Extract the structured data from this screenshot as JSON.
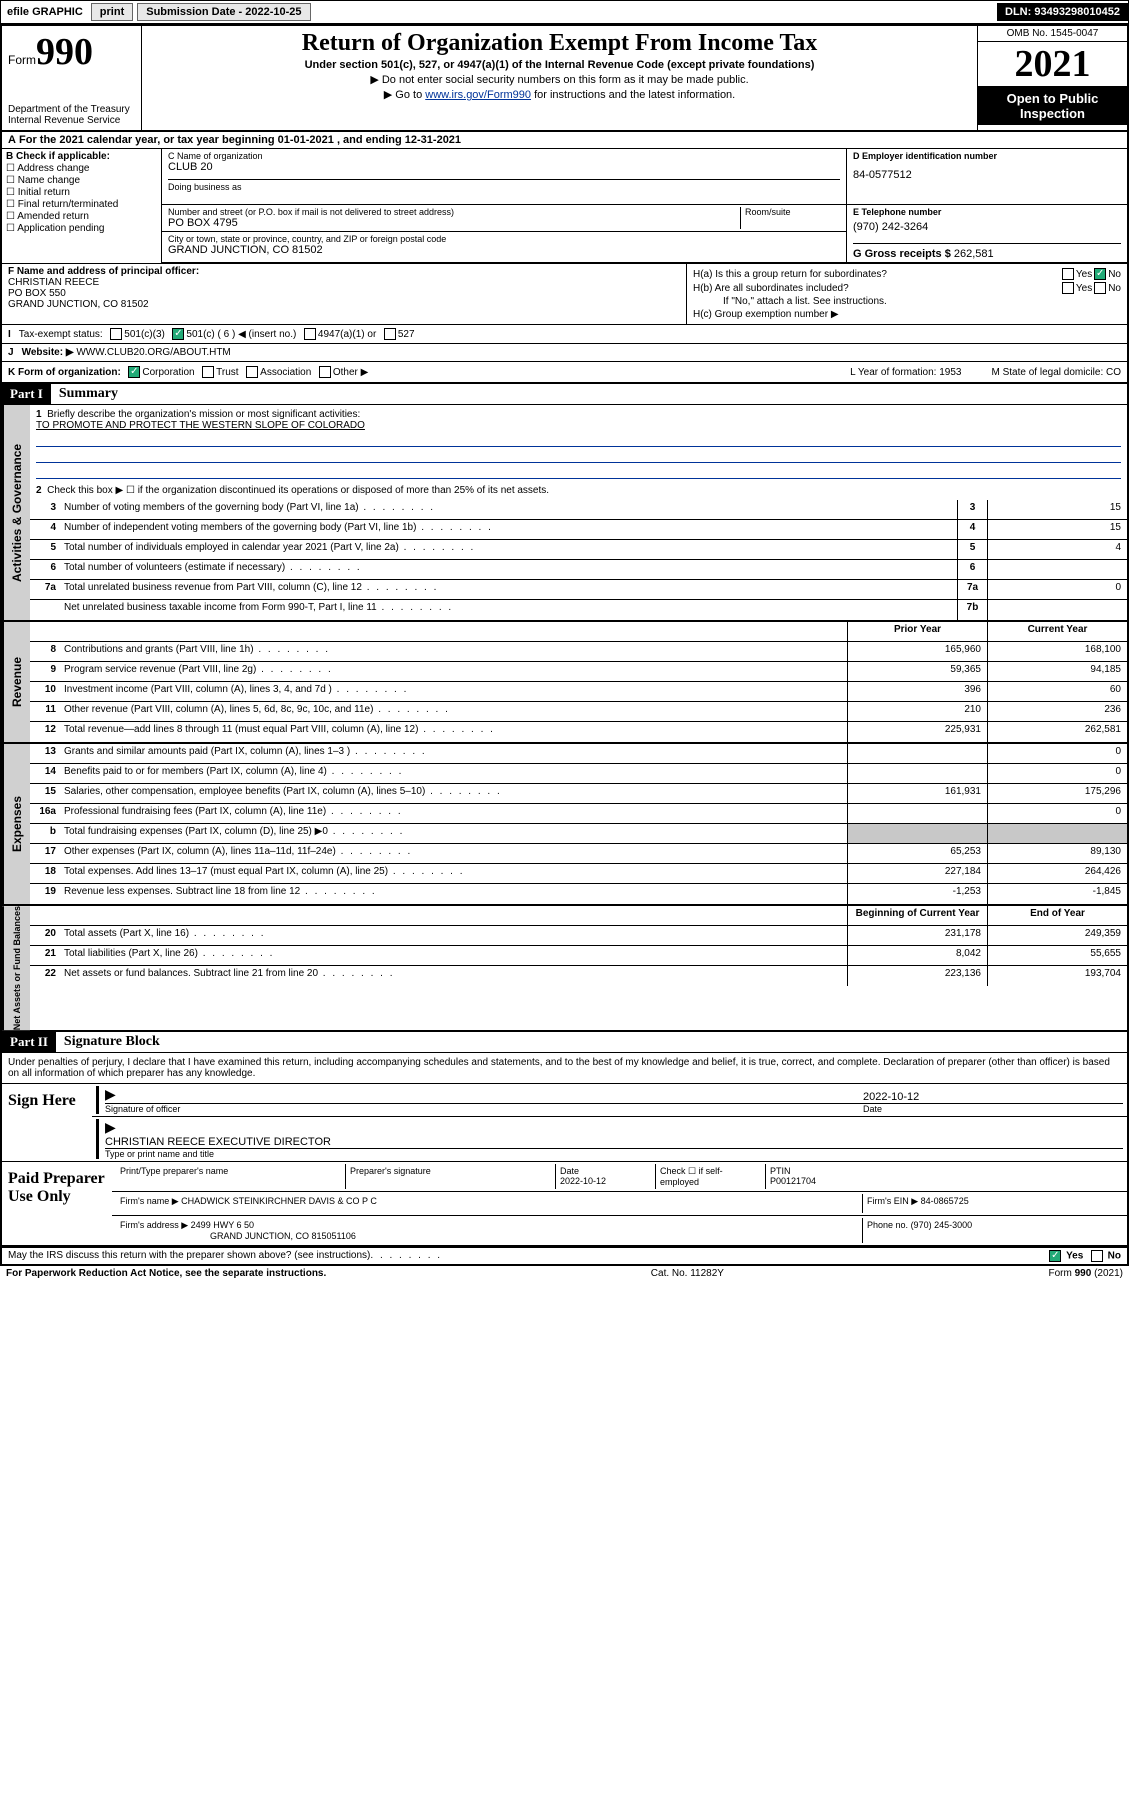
{
  "topbar": {
    "efile": "efile GRAPHIC",
    "print": "print",
    "sub_label": "Submission Date - 2022-10-25",
    "dln": "DLN: 93493298010452"
  },
  "header": {
    "form_prefix": "Form",
    "form_num": "990",
    "dept": "Department of the Treasury\nInternal Revenue Service",
    "title": "Return of Organization Exempt From Income Tax",
    "sub1": "Under section 501(c), 527, or 4947(a)(1) of the Internal Revenue Code (except private foundations)",
    "sub2": "▶ Do not enter social security numbers on this form as it may be made public.",
    "sub3_pre": "▶ Go to ",
    "sub3_link": "www.irs.gov/Form990",
    "sub3_post": " for instructions and the latest information.",
    "omb": "OMB No. 1545-0047",
    "year": "2021",
    "open": "Open to Public Inspection"
  },
  "rowA": "For the 2021 calendar year, or tax year beginning 01-01-2021   , and ending 12-31-2021",
  "colB": {
    "hdr": "B Check if applicable:",
    "items": [
      "Address change",
      "Name change",
      "Initial return",
      "Final return/terminated",
      "Amended return",
      "Application pending"
    ]
  },
  "c": {
    "name_lbl": "C Name of organization",
    "name": "CLUB 20",
    "dba_lbl": "Doing business as",
    "street_lbl": "Number and street (or P.O. box if mail is not delivered to street address)",
    "room_lbl": "Room/suite",
    "street": "PO BOX 4795",
    "city_lbl": "City or town, state or province, country, and ZIP or foreign postal code",
    "city": "GRAND JUNCTION, CO  81502"
  },
  "d": {
    "lbl": "D Employer identification number",
    "val": "84-0577512"
  },
  "e": {
    "lbl": "E Telephone number",
    "val": "(970) 242-3264"
  },
  "g": {
    "lbl": "G Gross receipts $",
    "val": "262,581"
  },
  "f": {
    "lbl": "F  Name and address of principal officer:",
    "name": "CHRISTIAN REECE",
    "addr1": "PO BOX 550",
    "addr2": "GRAND JUNCTION, CO  81502"
  },
  "h": {
    "a": "H(a)  Is this a group return for subordinates?",
    "b": "H(b)  Are all subordinates included?",
    "b_note": "If \"No,\" attach a list. See instructions.",
    "c": "H(c)  Group exemption number ▶",
    "yes": "Yes",
    "no": "No"
  },
  "i": {
    "lbl": "I",
    "txt": "Tax-exempt status:",
    "opts": [
      "501(c)(3)",
      "501(c) ( 6 ) ◀ (insert no.)",
      "4947(a)(1) or",
      "527"
    ]
  },
  "j": {
    "lbl": "J",
    "txt": "Website: ▶",
    "val": "WWW.CLUB20.ORG/ABOUT.HTM"
  },
  "k": {
    "lbl": "K Form of organization:",
    "opts": [
      "Corporation",
      "Trust",
      "Association",
      "Other ▶"
    ],
    "l": "L Year of formation: 1953",
    "m": "M State of legal domicile: CO"
  },
  "part1": {
    "hdr": "Part I",
    "title": "Summary",
    "q1": "Briefly describe the organization's mission or most significant activities:",
    "mission": "TO PROMOTE AND PROTECT THE WESTERN SLOPE OF COLORADO",
    "q2": "Check this box ▶ ☐  if the organization discontinued its operations or disposed of more than 25% of its net assets."
  },
  "gov_rows": [
    {
      "n": "3",
      "d": "Number of voting members of the governing body (Part VI, line 1a)",
      "box": "3",
      "v": "15"
    },
    {
      "n": "4",
      "d": "Number of independent voting members of the governing body (Part VI, line 1b)",
      "box": "4",
      "v": "15"
    },
    {
      "n": "5",
      "d": "Total number of individuals employed in calendar year 2021 (Part V, line 2a)",
      "box": "5",
      "v": "4"
    },
    {
      "n": "6",
      "d": "Total number of volunteers (estimate if necessary)",
      "box": "6",
      "v": ""
    },
    {
      "n": "7a",
      "d": "Total unrelated business revenue from Part VIII, column (C), line 12",
      "box": "7a",
      "v": "0"
    },
    {
      "n": "",
      "d": "Net unrelated business taxable income from Form 990-T, Part I, line 11",
      "box": "7b",
      "v": ""
    }
  ],
  "col_hdrs": {
    "prior": "Prior Year",
    "current": "Current Year",
    "boy": "Beginning of Current Year",
    "eoy": "End of Year"
  },
  "rev_rows": [
    {
      "n": "8",
      "d": "Contributions and grants (Part VIII, line 1h)",
      "p": "165,960",
      "c": "168,100"
    },
    {
      "n": "9",
      "d": "Program service revenue (Part VIII, line 2g)",
      "p": "59,365",
      "c": "94,185"
    },
    {
      "n": "10",
      "d": "Investment income (Part VIII, column (A), lines 3, 4, and 7d )",
      "p": "396",
      "c": "60"
    },
    {
      "n": "11",
      "d": "Other revenue (Part VIII, column (A), lines 5, 6d, 8c, 9c, 10c, and 11e)",
      "p": "210",
      "c": "236"
    },
    {
      "n": "12",
      "d": "Total revenue—add lines 8 through 11 (must equal Part VIII, column (A), line 12)",
      "p": "225,931",
      "c": "262,581"
    }
  ],
  "exp_rows": [
    {
      "n": "13",
      "d": "Grants and similar amounts paid (Part IX, column (A), lines 1–3 )",
      "p": "",
      "c": "0"
    },
    {
      "n": "14",
      "d": "Benefits paid to or for members (Part IX, column (A), line 4)",
      "p": "",
      "c": "0"
    },
    {
      "n": "15",
      "d": "Salaries, other compensation, employee benefits (Part IX, column (A), lines 5–10)",
      "p": "161,931",
      "c": "175,296"
    },
    {
      "n": "16a",
      "d": "Professional fundraising fees (Part IX, column (A), line 11e)",
      "p": "",
      "c": "0"
    },
    {
      "n": "b",
      "d": "Total fundraising expenses (Part IX, column (D), line 25) ▶0",
      "p": "grey",
      "c": "grey"
    },
    {
      "n": "17",
      "d": "Other expenses (Part IX, column (A), lines 11a–11d, 11f–24e)",
      "p": "65,253",
      "c": "89,130"
    },
    {
      "n": "18",
      "d": "Total expenses. Add lines 13–17 (must equal Part IX, column (A), line 25)",
      "p": "227,184",
      "c": "264,426"
    },
    {
      "n": "19",
      "d": "Revenue less expenses. Subtract line 18 from line 12",
      "p": "-1,253",
      "c": "-1,845"
    }
  ],
  "net_rows": [
    {
      "n": "20",
      "d": "Total assets (Part X, line 16)",
      "p": "231,178",
      "c": "249,359"
    },
    {
      "n": "21",
      "d": "Total liabilities (Part X, line 26)",
      "p": "8,042",
      "c": "55,655"
    },
    {
      "n": "22",
      "d": "Net assets or fund balances. Subtract line 21 from line 20",
      "p": "223,136",
      "c": "193,704"
    }
  ],
  "sides": {
    "gov": "Activities & Governance",
    "rev": "Revenue",
    "exp": "Expenses",
    "net": "Net Assets or Fund Balances"
  },
  "part2": {
    "hdr": "Part II",
    "title": "Signature Block",
    "decl": "Under penalties of perjury, I declare that I have examined this return, including accompanying schedules and statements, and to the best of my knowledge and belief, it is true, correct, and complete. Declaration of preparer (other than officer) is based on all information of which preparer has any knowledge."
  },
  "sign": {
    "here": "Sign Here",
    "sig_lbl": "Signature of officer",
    "date_lbl": "Date",
    "date": "2022-10-12",
    "name": "CHRISTIAN REECE  EXECUTIVE DIRECTOR",
    "name_lbl": "Type or print name and title"
  },
  "paid": {
    "hdr": "Paid Preparer Use Only",
    "prep_name_lbl": "Print/Type preparer's name",
    "prep_sig_lbl": "Preparer's signature",
    "date_lbl": "Date",
    "date": "2022-10-12",
    "check_lbl": "Check ☐ if self-employed",
    "ptin_lbl": "PTIN",
    "ptin": "P00121704",
    "firm_name_lbl": "Firm's name      ▶",
    "firm_name": "CHADWICK STEINKIRCHNER DAVIS & CO P C",
    "firm_ein_lbl": "Firm's EIN ▶",
    "firm_ein": "84-0865725",
    "firm_addr_lbl": "Firm's address ▶",
    "firm_addr1": "2499 HWY 6 50",
    "firm_addr2": "GRAND JUNCTION, CO  815051106",
    "phone_lbl": "Phone no.",
    "phone": "(970) 245-3000"
  },
  "footer": {
    "may": "May the IRS discuss this return with the preparer shown above? (see instructions)",
    "yes": "Yes",
    "no": "No",
    "pra": "For Paperwork Reduction Act Notice, see the separate instructions.",
    "cat": "Cat. No. 11282Y",
    "form": "Form 990 (2021)"
  }
}
